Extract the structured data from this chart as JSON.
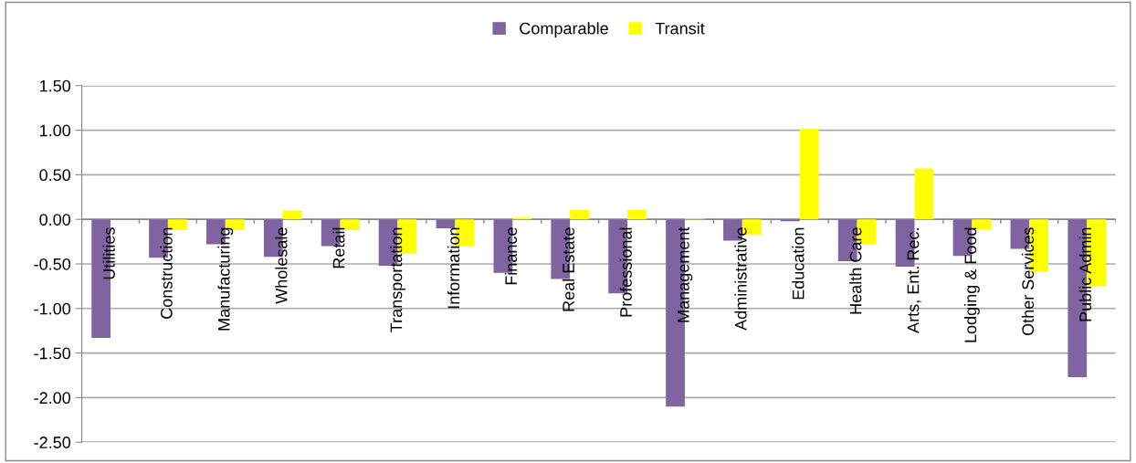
{
  "chart_data": {
    "type": "bar",
    "categories": [
      "Utilities",
      "Construction",
      "Manufacturing",
      "Wholesale",
      "Retail",
      "Transportation",
      "Information",
      "Finance",
      "Real Estate",
      "Professional",
      "Management",
      "Administrative",
      "Education",
      "Health Care",
      "Arts, Ent. Rec.",
      "Lodging & Food",
      "Other Services",
      "Public Admin"
    ],
    "series": [
      {
        "name": "Comparable",
        "color": "#8064a2",
        "values": [
          -1.33,
          -0.43,
          -0.28,
          -0.42,
          -0.3,
          -0.52,
          -0.1,
          -0.6,
          -0.67,
          -0.83,
          -2.1,
          -0.24,
          -0.02,
          -0.47,
          -0.53,
          -0.41,
          -0.33,
          -1.77
        ]
      },
      {
        "name": "Transit",
        "color": "#ffff00",
        "values": [
          0,
          -0.12,
          -0.12,
          0.1,
          -0.12,
          -0.38,
          -0.3,
          0.02,
          0.11,
          0.11,
          0.01,
          -0.17,
          1.02,
          -0.28,
          0.57,
          -0.11,
          -0.59,
          -0.75
        ]
      }
    ],
    "ylim": [
      -2.5,
      1.5
    ],
    "yticks": [
      {
        "value": -2.5,
        "label": "-2.50"
      },
      {
        "value": -2.0,
        "label": "-2.00"
      },
      {
        "value": -1.5,
        "label": "-1.50"
      },
      {
        "value": -1.0,
        "label": "-1.00"
      },
      {
        "value": -0.5,
        "label": "-0.50"
      },
      {
        "value": 0,
        "label": "0.00"
      },
      {
        "value": 0.5,
        "label": "0.50"
      },
      {
        "value": 1.0,
        "label": "1.00"
      },
      {
        "value": 1.5,
        "label": "1.50"
      }
    ],
    "grid": "y",
    "legend": "top"
  }
}
